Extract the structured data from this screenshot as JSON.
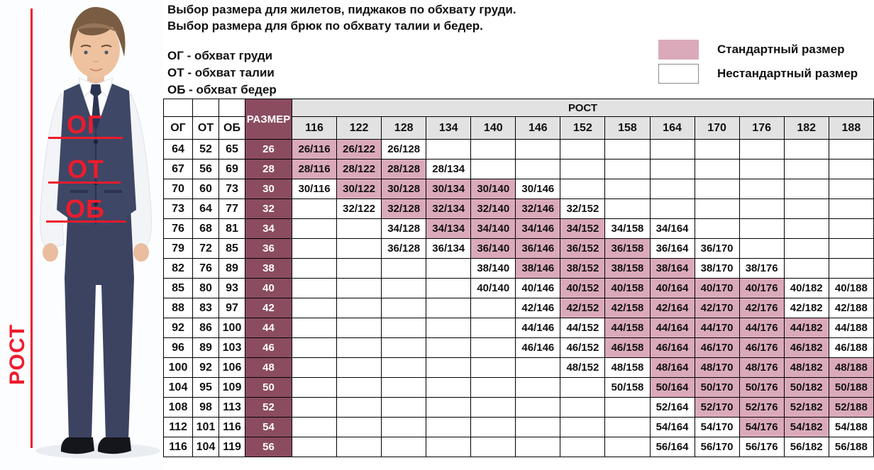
{
  "intro": {
    "line1": "Выбор размера для жилетов, пиджаков по обхвату груди.",
    "line2": "Выбор размера для брюк по обхвату талии и бедер.",
    "abbrev1": "ОГ - обхват груди",
    "abbrev2": "ОТ - обхват талии",
    "abbrev3": "ОБ - обхват бедер"
  },
  "legend": {
    "standard_label": "Стандартный размер",
    "nonstandard_label": "Нестандартный размер",
    "standard_color": "#dbaaba",
    "nonstandard_color": "#ffffff"
  },
  "figure": {
    "chest_label": "ОГ",
    "waist_label": "ОТ",
    "hips_label": "ОБ",
    "height_label": "РОСТ",
    "annotation_color": "#ee1b2d"
  },
  "table": {
    "header": {
      "og": "ОГ",
      "ot": "ОТ",
      "ob": "ОБ",
      "size": "РАЗМЕР",
      "rost": "РОСТ"
    },
    "heights": [
      "116",
      "122",
      "128",
      "134",
      "140",
      "146",
      "152",
      "158",
      "164",
      "170",
      "176",
      "182",
      "188"
    ],
    "rows": [
      {
        "og": "64",
        "ot": "52",
        "ob": "65",
        "size": "26",
        "cells": [
          {
            "t": "26/116",
            "s": 1
          },
          {
            "t": "26/122",
            "s": 1
          },
          {
            "t": "26/128",
            "s": 0
          },
          null,
          null,
          null,
          null,
          null,
          null,
          null,
          null,
          null,
          null
        ]
      },
      {
        "og": "67",
        "ot": "56",
        "ob": "69",
        "size": "28",
        "cells": [
          {
            "t": "28/116",
            "s": 1
          },
          {
            "t": "28/122",
            "s": 1
          },
          {
            "t": "28/128",
            "s": 1
          },
          {
            "t": "28/134",
            "s": 0
          },
          null,
          null,
          null,
          null,
          null,
          null,
          null,
          null,
          null
        ]
      },
      {
        "og": "70",
        "ot": "60",
        "ob": "73",
        "size": "30",
        "cells": [
          {
            "t": "30/116",
            "s": 0
          },
          {
            "t": "30/122",
            "s": 1
          },
          {
            "t": "30/128",
            "s": 1
          },
          {
            "t": "30/134",
            "s": 1
          },
          {
            "t": "30/140",
            "s": 1
          },
          {
            "t": "30/146",
            "s": 0
          },
          null,
          null,
          null,
          null,
          null,
          null,
          null
        ]
      },
      {
        "og": "73",
        "ot": "64",
        "ob": "77",
        "size": "32",
        "cells": [
          null,
          {
            "t": "32/122",
            "s": 0
          },
          {
            "t": "32/128",
            "s": 1
          },
          {
            "t": "32/134",
            "s": 1
          },
          {
            "t": "32/140",
            "s": 1
          },
          {
            "t": "32/146",
            "s": 1
          },
          {
            "t": "32/152",
            "s": 0
          },
          null,
          null,
          null,
          null,
          null,
          null
        ]
      },
      {
        "og": "76",
        "ot": "68",
        "ob": "81",
        "size": "34",
        "cells": [
          null,
          null,
          {
            "t": "34/128",
            "s": 0
          },
          {
            "t": "34/134",
            "s": 1
          },
          {
            "t": "34/140",
            "s": 1
          },
          {
            "t": "34/146",
            "s": 1
          },
          {
            "t": "34/152",
            "s": 1
          },
          {
            "t": "34/158",
            "s": 0
          },
          {
            "t": "34/164",
            "s": 0
          },
          null,
          null,
          null,
          null
        ]
      },
      {
        "og": "79",
        "ot": "72",
        "ob": "85",
        "size": "36",
        "cells": [
          null,
          null,
          {
            "t": "36/128",
            "s": 0
          },
          {
            "t": "36/134",
            "s": 0
          },
          {
            "t": "36/140",
            "s": 1
          },
          {
            "t": "36/146",
            "s": 1
          },
          {
            "t": "36/152",
            "s": 1
          },
          {
            "t": "36/158",
            "s": 1
          },
          {
            "t": "36/164",
            "s": 0
          },
          {
            "t": "36/170",
            "s": 0
          },
          null,
          null,
          null
        ]
      },
      {
        "og": "82",
        "ot": "76",
        "ob": "89",
        "size": "38",
        "cells": [
          null,
          null,
          null,
          null,
          {
            "t": "38/140",
            "s": 0
          },
          {
            "t": "38/146",
            "s": 1
          },
          {
            "t": "38/152",
            "s": 1
          },
          {
            "t": "38/158",
            "s": 1
          },
          {
            "t": "38/164",
            "s": 1
          },
          {
            "t": "38/170",
            "s": 0
          },
          {
            "t": "38/176",
            "s": 0
          },
          null,
          null
        ]
      },
      {
        "og": "85",
        "ot": "80",
        "ob": "93",
        "size": "40",
        "cells": [
          null,
          null,
          null,
          null,
          {
            "t": "40/140",
            "s": 0
          },
          {
            "t": "40/146",
            "s": 0
          },
          {
            "t": "40/152",
            "s": 1
          },
          {
            "t": "40/158",
            "s": 1
          },
          {
            "t": "40/164",
            "s": 1
          },
          {
            "t": "40/170",
            "s": 1
          },
          {
            "t": "40/176",
            "s": 1
          },
          {
            "t": "40/182",
            "s": 0
          },
          {
            "t": "40/188",
            "s": 0
          }
        ]
      },
      {
        "og": "88",
        "ot": "83",
        "ob": "97",
        "size": "42",
        "cells": [
          null,
          null,
          null,
          null,
          null,
          {
            "t": "42/146",
            "s": 0
          },
          {
            "t": "42/152",
            "s": 1
          },
          {
            "t": "42/158",
            "s": 1
          },
          {
            "t": "42/164",
            "s": 1
          },
          {
            "t": "42/170",
            "s": 1
          },
          {
            "t": "42/176",
            "s": 1
          },
          {
            "t": "42/182",
            "s": 0
          },
          {
            "t": "42/188",
            "s": 0
          }
        ]
      },
      {
        "og": "92",
        "ot": "86",
        "ob": "100",
        "size": "44",
        "cells": [
          null,
          null,
          null,
          null,
          null,
          {
            "t": "44/146",
            "s": 0
          },
          {
            "t": "44/152",
            "s": 0
          },
          {
            "t": "44/158",
            "s": 1
          },
          {
            "t": "44/164",
            "s": 1
          },
          {
            "t": "44/170",
            "s": 1
          },
          {
            "t": "44/176",
            "s": 1
          },
          {
            "t": "44/182",
            "s": 1
          },
          {
            "t": "44/188",
            "s": 0
          }
        ]
      },
      {
        "og": "96",
        "ot": "89",
        "ob": "103",
        "size": "46",
        "cells": [
          null,
          null,
          null,
          null,
          null,
          {
            "t": "46/146",
            "s": 0
          },
          {
            "t": "46/152",
            "s": 0
          },
          {
            "t": "46/158",
            "s": 1
          },
          {
            "t": "46/164",
            "s": 1
          },
          {
            "t": "46/170",
            "s": 1
          },
          {
            "t": "46/176",
            "s": 1
          },
          {
            "t": "46/182",
            "s": 1
          },
          {
            "t": "46/188",
            "s": 0
          }
        ]
      },
      {
        "og": "100",
        "ot": "92",
        "ob": "106",
        "size": "48",
        "cells": [
          null,
          null,
          null,
          null,
          null,
          null,
          {
            "t": "48/152",
            "s": 0
          },
          {
            "t": "48/158",
            "s": 0
          },
          {
            "t": "48/164",
            "s": 1
          },
          {
            "t": "48/170",
            "s": 1
          },
          {
            "t": "48/176",
            "s": 1
          },
          {
            "t": "48/182",
            "s": 1
          },
          {
            "t": "48/188",
            "s": 1
          }
        ]
      },
      {
        "og": "104",
        "ot": "95",
        "ob": "109",
        "size": "50",
        "cells": [
          null,
          null,
          null,
          null,
          null,
          null,
          null,
          {
            "t": "50/158",
            "s": 0
          },
          {
            "t": "50/164",
            "s": 1
          },
          {
            "t": "50/170",
            "s": 1
          },
          {
            "t": "50/176",
            "s": 1
          },
          {
            "t": "50/182",
            "s": 1
          },
          {
            "t": "50/188",
            "s": 1
          }
        ]
      },
      {
        "og": "108",
        "ot": "98",
        "ob": "113",
        "size": "52",
        "cells": [
          null,
          null,
          null,
          null,
          null,
          null,
          null,
          null,
          {
            "t": "52/164",
            "s": 0
          },
          {
            "t": "52/170",
            "s": 1
          },
          {
            "t": "52/176",
            "s": 1
          },
          {
            "t": "52/182",
            "s": 1
          },
          {
            "t": "52/188",
            "s": 1
          }
        ]
      },
      {
        "og": "112",
        "ot": "101",
        "ob": "116",
        "size": "54",
        "cells": [
          null,
          null,
          null,
          null,
          null,
          null,
          null,
          null,
          {
            "t": "54/164",
            "s": 0
          },
          {
            "t": "54/170",
            "s": 0
          },
          {
            "t": "54/176",
            "s": 1
          },
          {
            "t": "54/182",
            "s": 1
          },
          {
            "t": "54/188",
            "s": 0
          }
        ]
      },
      {
        "og": "116",
        "ot": "104",
        "ob": "119",
        "size": "56",
        "cells": [
          null,
          null,
          null,
          null,
          null,
          null,
          null,
          null,
          {
            "t": "56/164",
            "s": 0
          },
          {
            "t": "56/170",
            "s": 0
          },
          {
            "t": "56/176",
            "s": 0
          },
          {
            "t": "56/182",
            "s": 0
          },
          {
            "t": "56/188",
            "s": 0
          }
        ]
      }
    ]
  }
}
